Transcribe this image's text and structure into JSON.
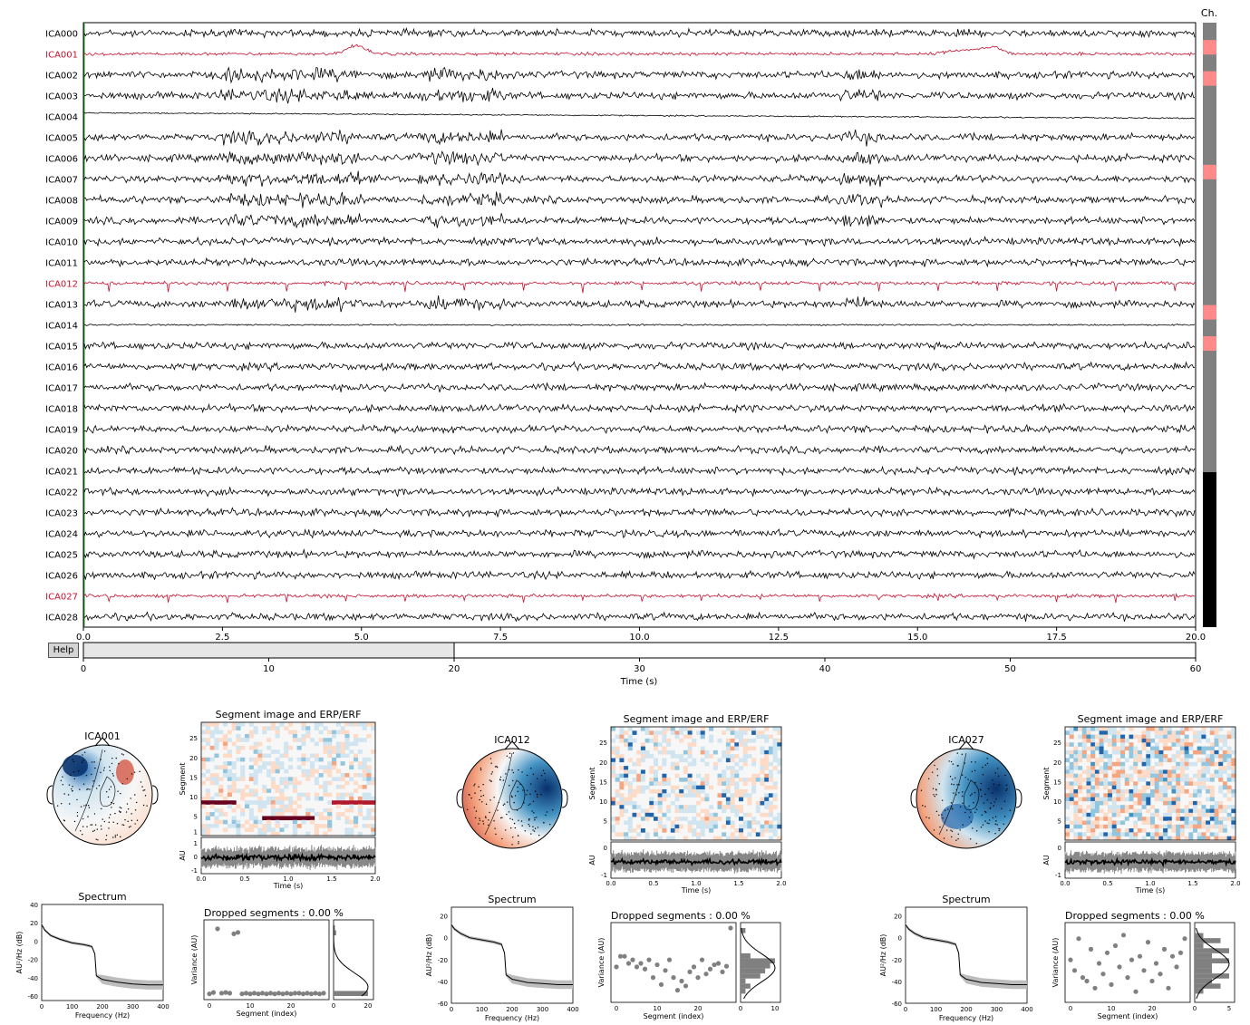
{
  "browser": {
    "channel_header": "Ch.",
    "channels": [
      "ICA000",
      "ICA001",
      "ICA002",
      "ICA003",
      "ICA004",
      "ICA005",
      "ICA006",
      "ICA007",
      "ICA008",
      "ICA009",
      "ICA010",
      "ICA011",
      "ICA012",
      "ICA013",
      "ICA014",
      "ICA015",
      "ICA016",
      "ICA017",
      "ICA018",
      "ICA019",
      "ICA020",
      "ICA021",
      "ICA022",
      "ICA023",
      "ICA024",
      "ICA025",
      "ICA026",
      "ICA027",
      "ICA028"
    ],
    "excluded": [
      "ICA001",
      "ICA012",
      "ICA027"
    ],
    "bad_color": "#c8102e",
    "good_color": "#000000",
    "scrollbar_marks": [
      1,
      3,
      9,
      18,
      20
    ],
    "scrollbar_mark_color": "#ff8a8a",
    "x_ticks": [
      "0.0",
      "2.5",
      "5.0",
      "7.5",
      "10.0",
      "12.5",
      "15.0",
      "17.5",
      "20.0"
    ],
    "help_label": "Help",
    "overview_ticks": [
      "0",
      "10",
      "20",
      "30",
      "40",
      "50",
      "60"
    ],
    "overview_xlabel": "Time (s)",
    "overview_view": [
      0,
      20
    ],
    "overview_range": [
      0,
      60
    ]
  },
  "chart_data": [
    {
      "type": "line",
      "title": "",
      "xlabel": "",
      "ylabel": "",
      "xlim": [
        0,
        20
      ],
      "series_names": [
        "ICA000",
        "ICA001",
        "ICA002",
        "ICA003",
        "ICA004",
        "ICA005",
        "ICA006",
        "ICA007",
        "ICA008",
        "ICA009",
        "ICA010",
        "ICA011",
        "ICA012",
        "ICA013",
        "ICA014",
        "ICA015",
        "ICA016",
        "ICA017",
        "ICA018",
        "ICA019",
        "ICA020",
        "ICA021",
        "ICA022",
        "ICA023",
        "ICA024",
        "ICA025",
        "ICA026",
        "ICA027",
        "ICA028"
      ]
    },
    {
      "type": "line",
      "xlabel": "Time (s)",
      "xlim": [
        0,
        60
      ],
      "selected_window": [
        0,
        20
      ]
    }
  ],
  "panels": [
    {
      "component": "ICA001",
      "topomap_title": "ICA001",
      "image_title": "Segment image and ERP/ERF",
      "image_ylabel": "Segment",
      "image_yticks": [
        "1",
        "5",
        "10",
        "15",
        "20",
        "25"
      ],
      "erp_ylabel": "AU",
      "erp_yticks": [
        "1",
        "0",
        "-1"
      ],
      "erp_xticks": [
        "0.0",
        "0.5",
        "1.0",
        "1.5",
        "2.0"
      ],
      "erp_xlabel": "Time (s)",
      "spectrum_title": "Spectrum",
      "spectrum_ylabel": "AU²/Hz (dB)",
      "spectrum_yticks": [
        "40",
        "20",
        "0",
        "-20",
        "-40",
        "-60"
      ],
      "spectrum_xticks": [
        "0",
        "100",
        "200",
        "300",
        "400"
      ],
      "spectrum_xlabel": "Frequency (Hz)",
      "spectrum_curve": [
        [
          0,
          18
        ],
        [
          10,
          12
        ],
        [
          30,
          6
        ],
        [
          60,
          2
        ],
        [
          100,
          -2
        ],
        [
          140,
          -4
        ],
        [
          165,
          -6
        ],
        [
          175,
          -14
        ],
        [
          180,
          -38
        ],
        [
          200,
          -42
        ],
        [
          250,
          -45
        ],
        [
          300,
          -47
        ],
        [
          350,
          -48
        ],
        [
          400,
          -48
        ]
      ],
      "spectrum_band": 5,
      "dropped_title": "Dropped segments : 0.00 %",
      "variance_ylabel": "Variance (AU)",
      "variance_xticks": [
        "0",
        "10",
        "20"
      ],
      "variance_xlabel": "Segment (index)",
      "hist_xticks": [
        "0",
        "20"
      ],
      "variance_values": [
        0.03,
        0.05,
        0.95,
        0.04,
        0.05,
        0.04,
        0.88,
        0.9,
        0.03,
        0.04,
        0.03,
        0.04,
        0.03,
        0.04,
        0.03,
        0.04,
        0.03,
        0.04,
        0.03,
        0.04,
        0.03,
        0.04,
        0.04,
        0.03,
        0.04,
        0.03,
        0.04,
        0.03,
        0.04
      ]
    },
    {
      "component": "ICA012",
      "topomap_title": "ICA012",
      "image_title": "Segment image and ERP/ERF",
      "image_ylabel": "Segment",
      "image_yticks": [
        "5",
        "10",
        "15",
        "20",
        "25"
      ],
      "erp_ylabel": "AU",
      "erp_yticks": [
        "0",
        "-1"
      ],
      "erp_xticks": [
        "0.0",
        "0.5",
        "1.0",
        "1.5",
        "2.0"
      ],
      "erp_xlabel": "Time (s)",
      "spectrum_title": "Spectrum",
      "spectrum_ylabel": "AU²/Hz (dB)",
      "spectrum_yticks": [
        "20",
        "0",
        "-20",
        "-40",
        "-60"
      ],
      "spectrum_xticks": [
        "0",
        "100",
        "200",
        "300",
        "400"
      ],
      "spectrum_xlabel": "Frequency (Hz)",
      "spectrum_curve": [
        [
          0,
          12
        ],
        [
          10,
          8
        ],
        [
          30,
          4
        ],
        [
          60,
          0
        ],
        [
          100,
          -2
        ],
        [
          140,
          -4
        ],
        [
          165,
          -6
        ],
        [
          175,
          -14
        ],
        [
          180,
          -34
        ],
        [
          200,
          -38
        ],
        [
          250,
          -41
        ],
        [
          300,
          -42
        ],
        [
          350,
          -43
        ],
        [
          400,
          -43
        ]
      ],
      "spectrum_band": 4,
      "dropped_title": "Dropped segments : 0.00 %",
      "variance_ylabel": "Variance (AU)",
      "variance_xticks": [
        "0",
        "10",
        "20"
      ],
      "variance_xlabel": "Segment (index)",
      "hist_xticks": [
        "0",
        "10"
      ],
      "variance_values": [
        0.45,
        0.6,
        0.6,
        0.5,
        0.55,
        0.45,
        0.5,
        0.42,
        0.55,
        0.3,
        0.48,
        0.2,
        0.4,
        0.55,
        0.3,
        0.12,
        0.25,
        0.18,
        0.38,
        0.45,
        0.3,
        0.55,
        0.35,
        0.42,
        0.48,
        0.5,
        0.38,
        0.46,
        1.0
      ]
    },
    {
      "component": "ICA027",
      "topomap_title": "ICA027",
      "image_title": "Segment image and ERP/ERF",
      "image_ylabel": "Segment",
      "image_yticks": [
        "5",
        "10",
        "15",
        "20",
        "25"
      ],
      "erp_ylabel": "AU",
      "erp_yticks": [
        "0",
        "-1"
      ],
      "erp_xticks": [
        "0.0",
        "0.5",
        "1.0",
        "1.5",
        "2.0"
      ],
      "erp_xlabel": "Time (s)",
      "spectrum_title": "Spectrum",
      "spectrum_ylabel": "AU²/Hz (dB)",
      "spectrum_yticks": [
        "20",
        "0",
        "-20",
        "-40",
        "-60"
      ],
      "spectrum_xticks": [
        "0",
        "100",
        "200",
        "300",
        "400"
      ],
      "spectrum_xlabel": "Frequency (Hz)",
      "spectrum_curve": [
        [
          0,
          12
        ],
        [
          10,
          8
        ],
        [
          30,
          4
        ],
        [
          60,
          0
        ],
        [
          100,
          -2
        ],
        [
          140,
          -4
        ],
        [
          165,
          -6
        ],
        [
          175,
          -14
        ],
        [
          180,
          -34
        ],
        [
          200,
          -38
        ],
        [
          250,
          -41
        ],
        [
          300,
          -42
        ],
        [
          350,
          -43
        ],
        [
          400,
          -43
        ]
      ],
      "spectrum_band": 4,
      "dropped_title": "Dropped segments : 0.00 %",
      "variance_ylabel": "Variance (AU)",
      "variance_xticks": [
        "0",
        "10",
        "20"
      ],
      "variance_xlabel": "Segment (index)",
      "hist_xticks": [
        "0",
        "5"
      ],
      "variance_values": [
        0.55,
        0.4,
        0.85,
        0.3,
        0.25,
        0.7,
        0.15,
        0.5,
        0.35,
        0.65,
        0.2,
        0.75,
        0.45,
        0.9,
        0.3,
        0.55,
        0.1,
        0.6,
        0.4,
        0.8,
        0.25,
        0.5,
        0.35,
        0.7,
        0.15,
        0.6,
        0.45,
        0.65,
        0.85
      ]
    }
  ]
}
